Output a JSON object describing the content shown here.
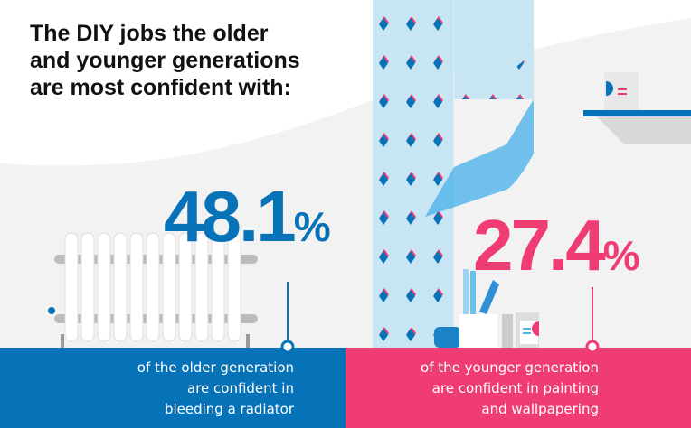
{
  "title": "The DIY jobs the older and younger generations are most confident with:",
  "colors": {
    "older": "#0672b8",
    "younger": "#ef3d74",
    "background": "#f2f2f2",
    "wallpaper": "#c8e5f4"
  },
  "older": {
    "value": "48.1",
    "unit": "%",
    "description_lines": [
      "of the older generation",
      "are confident in",
      "bleeding a radiator"
    ],
    "icon": "radiator-icon"
  },
  "younger": {
    "value": "27.4",
    "unit": "%",
    "description_lines": [
      "of the younger generation",
      "are confident in painting",
      "and wallpapering"
    ],
    "icon": "paint-and-wallpaper-icon"
  }
}
